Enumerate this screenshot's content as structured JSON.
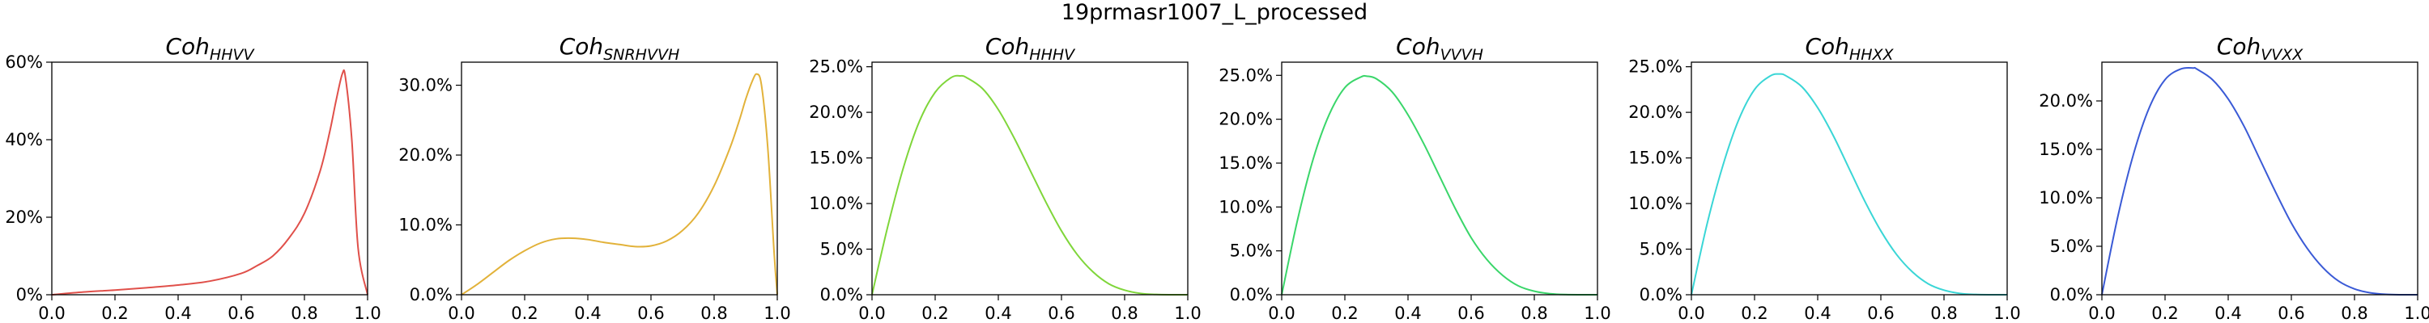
{
  "figure": {
    "suptitle": "19prmasr1007_L_processed"
  },
  "chart_data": [
    {
      "type": "line",
      "title_base": "Coh",
      "title_sub": "HHVV",
      "color": "#e0504a",
      "xlim": [
        0,
        1
      ],
      "ylim": [
        0,
        0.6
      ],
      "xticks": [
        0,
        0.2,
        0.4,
        0.6,
        0.8,
        1.0
      ],
      "xtick_labels": [
        "0.0",
        "0.2",
        "0.4",
        "0.6",
        "0.8",
        "1.0"
      ],
      "yticks": [
        0,
        0.2,
        0.4,
        0.6
      ],
      "ytick_labels": [
        "0%",
        "20%",
        "40%",
        "60%"
      ],
      "x": [
        0,
        0.1,
        0.2,
        0.3,
        0.4,
        0.5,
        0.6,
        0.65,
        0.7,
        0.75,
        0.8,
        0.85,
        0.88,
        0.9,
        0.92,
        0.93,
        0.95,
        0.97,
        1.0
      ],
      "y": [
        0.0,
        0.007,
        0.012,
        0.018,
        0.025,
        0.035,
        0.055,
        0.075,
        0.1,
        0.145,
        0.21,
        0.32,
        0.42,
        0.5,
        0.57,
        0.56,
        0.4,
        0.12,
        0.0
      ]
    },
    {
      "type": "line",
      "title_base": "Coh",
      "title_sub": "SNRHVVH",
      "color": "#e2b23a",
      "xlim": [
        0,
        1
      ],
      "ylim": [
        0,
        0.333
      ],
      "xticks": [
        0,
        0.2,
        0.4,
        0.6,
        0.8,
        1.0
      ],
      "xtick_labels": [
        "0.0",
        "0.2",
        "0.4",
        "0.6",
        "0.8",
        "1.0"
      ],
      "yticks": [
        0,
        0.1,
        0.2,
        0.3
      ],
      "ytick_labels": [
        "0.0%",
        "10.0%",
        "20.0%",
        "30.0%"
      ],
      "x": [
        0,
        0.05,
        0.1,
        0.15,
        0.2,
        0.25,
        0.3,
        0.35,
        0.4,
        0.45,
        0.5,
        0.55,
        0.6,
        0.65,
        0.7,
        0.75,
        0.8,
        0.85,
        0.88,
        0.9,
        0.92,
        0.935,
        0.95,
        0.97,
        0.99,
        1.0
      ],
      "y": [
        0.0,
        0.015,
        0.032,
        0.049,
        0.063,
        0.074,
        0.08,
        0.081,
        0.079,
        0.075,
        0.072,
        0.069,
        0.07,
        0.077,
        0.092,
        0.117,
        0.156,
        0.21,
        0.25,
        0.28,
        0.305,
        0.316,
        0.3,
        0.21,
        0.06,
        0.0
      ]
    },
    {
      "type": "line",
      "title_base": "Coh",
      "title_sub": "HHHV",
      "color": "#7fd63a",
      "xlim": [
        0,
        1
      ],
      "ylim": [
        0,
        0.255
      ],
      "xticks": [
        0,
        0.2,
        0.4,
        0.6,
        0.8,
        1.0
      ],
      "xtick_labels": [
        "0.0",
        "0.2",
        "0.4",
        "0.6",
        "0.8",
        "1.0"
      ],
      "yticks": [
        0,
        0.05,
        0.1,
        0.15,
        0.2,
        0.25
      ],
      "ytick_labels": [
        "0.0%",
        "5.0%",
        "10.0%",
        "15.0%",
        "20.0%",
        "25.0%"
      ],
      "x": [
        0,
        0.05,
        0.1,
        0.15,
        0.2,
        0.25,
        0.28,
        0.3,
        0.35,
        0.4,
        0.45,
        0.5,
        0.55,
        0.6,
        0.65,
        0.7,
        0.75,
        0.8,
        0.85,
        0.9,
        0.95,
        1.0
      ],
      "y": [
        0.0,
        0.075,
        0.14,
        0.19,
        0.222,
        0.238,
        0.24,
        0.238,
        0.226,
        0.203,
        0.172,
        0.137,
        0.102,
        0.07,
        0.044,
        0.025,
        0.012,
        0.005,
        0.0015,
        0.0003,
        0.0,
        0.0
      ]
    },
    {
      "type": "line",
      "title_base": "Coh",
      "title_sub": "VVVH",
      "color": "#3ad66a",
      "xlim": [
        0,
        1
      ],
      "ylim": [
        0,
        0.265
      ],
      "xticks": [
        0,
        0.2,
        0.4,
        0.6,
        0.8,
        1.0
      ],
      "xtick_labels": [
        "0.0",
        "0.2",
        "0.4",
        "0.6",
        "0.8",
        "1.0"
      ],
      "yticks": [
        0,
        0.05,
        0.1,
        0.15,
        0.2,
        0.25
      ],
      "ytick_labels": [
        "0.0%",
        "5.0%",
        "10.0%",
        "15.0%",
        "20.0%",
        "25.0%"
      ],
      "x": [
        0,
        0.05,
        0.1,
        0.15,
        0.2,
        0.25,
        0.27,
        0.3,
        0.35,
        0.4,
        0.45,
        0.5,
        0.55,
        0.6,
        0.65,
        0.7,
        0.75,
        0.8,
        0.85,
        0.9,
        0.95,
        1.0
      ],
      "y": [
        0.0,
        0.085,
        0.155,
        0.205,
        0.236,
        0.248,
        0.249,
        0.246,
        0.231,
        0.205,
        0.172,
        0.135,
        0.098,
        0.065,
        0.04,
        0.022,
        0.01,
        0.004,
        0.0012,
        0.0002,
        0.0,
        0.0
      ]
    },
    {
      "type": "line",
      "title_base": "Coh",
      "title_sub": "HHXX",
      "color": "#3ad6d6",
      "xlim": [
        0,
        1
      ],
      "ylim": [
        0,
        0.255
      ],
      "xticks": [
        0,
        0.2,
        0.4,
        0.6,
        0.8,
        1.0
      ],
      "xtick_labels": [
        "0.0",
        "0.2",
        "0.4",
        "0.6",
        "0.8",
        "1.0"
      ],
      "yticks": [
        0,
        0.05,
        0.1,
        0.15,
        0.2,
        0.25
      ],
      "ytick_labels": [
        "0.0%",
        "5.0%",
        "10.0%",
        "15.0%",
        "20.0%",
        "25.0%"
      ],
      "x": [
        0,
        0.05,
        0.1,
        0.15,
        0.2,
        0.25,
        0.28,
        0.3,
        0.35,
        0.4,
        0.45,
        0.5,
        0.55,
        0.6,
        0.65,
        0.7,
        0.75,
        0.8,
        0.85,
        0.9,
        0.95,
        1.0
      ],
      "y": [
        0.0,
        0.078,
        0.142,
        0.192,
        0.225,
        0.24,
        0.242,
        0.24,
        0.228,
        0.205,
        0.174,
        0.138,
        0.102,
        0.07,
        0.044,
        0.025,
        0.012,
        0.005,
        0.0015,
        0.0003,
        0.0,
        0.0
      ]
    },
    {
      "type": "line",
      "title_base": "Coh",
      "title_sub": "VVXX",
      "color": "#3a5ad6",
      "xlim": [
        0,
        1
      ],
      "ylim": [
        0,
        0.24
      ],
      "xticks": [
        0,
        0.2,
        0.4,
        0.6,
        0.8,
        1.0
      ],
      "xtick_labels": [
        "0.0",
        "0.2",
        "0.4",
        "0.6",
        "0.8",
        "1.0"
      ],
      "yticks": [
        0,
        0.05,
        0.1,
        0.15,
        0.2
      ],
      "ytick_labels": [
        "0.0%",
        "5.0%",
        "10.0%",
        "15.0%",
        "20.0%"
      ],
      "x": [
        0,
        0.05,
        0.1,
        0.15,
        0.2,
        0.25,
        0.29,
        0.3,
        0.35,
        0.4,
        0.45,
        0.5,
        0.55,
        0.6,
        0.65,
        0.7,
        0.75,
        0.8,
        0.85,
        0.9,
        0.95,
        1.0
      ],
      "y": [
        0.0,
        0.08,
        0.145,
        0.193,
        0.222,
        0.233,
        0.234,
        0.233,
        0.222,
        0.202,
        0.174,
        0.14,
        0.106,
        0.074,
        0.048,
        0.028,
        0.014,
        0.006,
        0.002,
        0.0004,
        0.0,
        0.0
      ]
    }
  ]
}
